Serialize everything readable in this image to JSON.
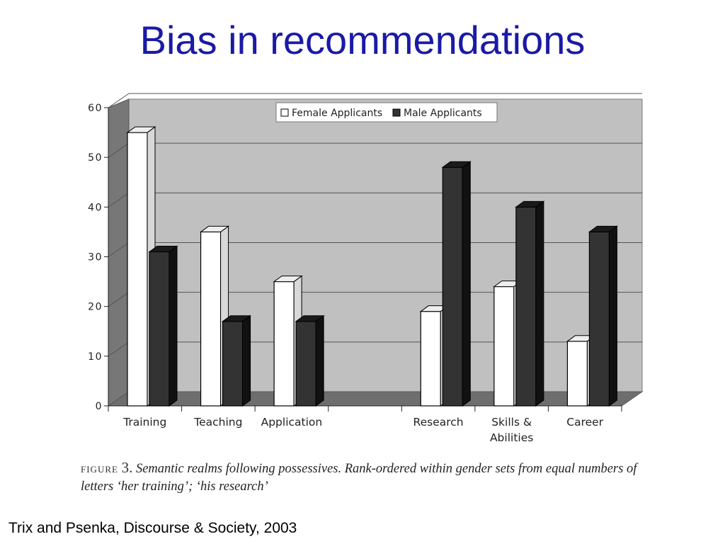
{
  "slide": {
    "title": "Bias in recommendations",
    "source": "Trix and Psenka, Discourse & Society, 2003"
  },
  "caption": {
    "figure_word": "FIGURE",
    "figure_num": "3.",
    "text": "Semantic realms following possessives. Rank-ordered within gender sets from equal numbers of letters ‘her training’; ‘his research’"
  },
  "chart_data": {
    "type": "bar",
    "categories": [
      "Training",
      "Teaching",
      "Application",
      "",
      "Research",
      "Skills  &\nAbilities",
      "Career"
    ],
    "series": [
      {
        "name": "Female Applicants",
        "values": [
          55,
          35,
          25,
          null,
          19,
          24,
          13
        ],
        "color": "#ffffff"
      },
      {
        "name": "Male Applicants",
        "values": [
          31,
          17,
          17,
          null,
          48,
          40,
          35
        ],
        "color": "#333333"
      }
    ],
    "ylim": [
      0,
      60
    ],
    "yticks": [
      0,
      10,
      20,
      30,
      40,
      50,
      60
    ],
    "grid": true,
    "legend": "top-center",
    "background": "#c0c0c0",
    "style": "3d"
  }
}
